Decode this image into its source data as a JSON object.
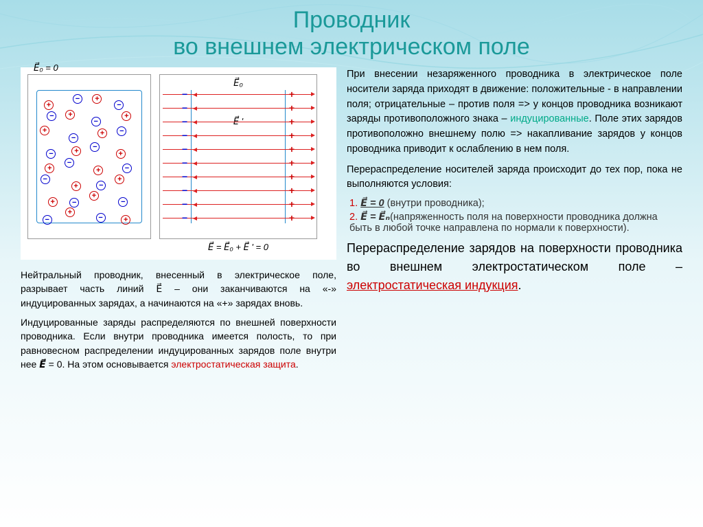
{
  "title_line1": "Проводник",
  "title_line2": "во внешнем электрическом поле",
  "title_color": "#1a9999",
  "title_fontsize": 34,
  "bg_gradient_top": "#7ac8d8",
  "bg_gradient_bottom": "#ffffff",
  "dia1": {
    "e0_label": "E⃗₀ = 0",
    "rows": 8,
    "cols": 4
  },
  "dia2": {
    "e0_top": "E⃗₀",
    "ei_mid": "E⃗ '",
    "eq_bottom": "E⃗ = E⃗₀ + E⃗ ' = 0",
    "lines": 10
  },
  "left_para1": "Нейтральный проводник, внесенный в электрическое поле, разрывает часть линий E⃗ – они заканчиваются на «-» индуцированных зарядах, а начинаются на «+»  зарядах вновь.",
  "left_para2_a": "Индуцированные заряды распределяются по внешней поверхности проводника. Если внутри проводника имеется полость, то при равновесном распределении индуцированных зарядов поле внутри нее ",
  "left_para2_e": "E⃗",
  "left_para2_b": " = 0. На этом основывается ",
  "left_para2_hl": "электростатическая защита",
  "left_para2_c": ".",
  "right_para1_a": "При внесении незаряженного проводника в электрическое поле носители заряда приходят в движение: положительные - в направлении поля; отрицательные – против поля => у концов проводника возникают заряды противоположного знака – ",
  "right_para1_hl": "индуцированные",
  "right_para1_b": ". Поле этих зарядов противоположно внешнему полю => накапливание зарядов у концов проводника приводит к ослаблению в нем поля.",
  "right_para2": "Перераспределение носителей заряда происходит до тех пор, пока не выполняются условия:",
  "li1_eq": "E⃗ = 0",
  "li1_txt": " (внутри проводника);",
  "li2_eq": "E⃗ = E⃗ₙ",
  "li2_txt": "(напряженность поля на поверхности проводника должна быть в любой точке направлена по нормали к поверхности).",
  "right_big_a": "Перераспределение зарядов на поверхности проводника во внешнем электростатическом поле – ",
  "right_big_hl": "электростатическая индукция",
  "right_big_b": ".",
  "colors": {
    "red": "#c00020",
    "teal": "#0a8888",
    "text": "#333333",
    "blue": "#0022cc"
  }
}
